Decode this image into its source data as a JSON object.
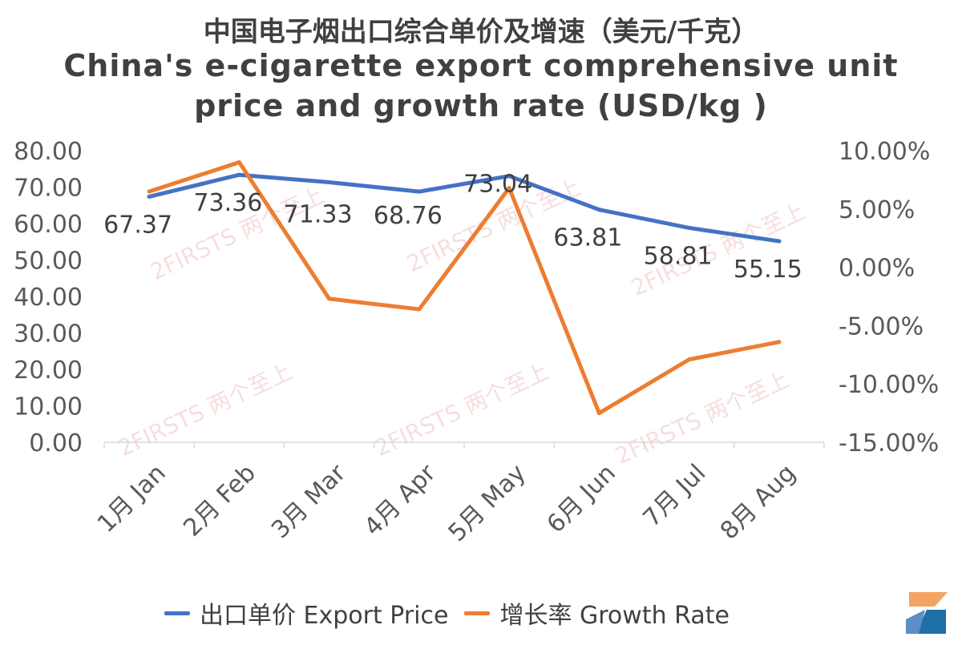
{
  "title": {
    "zh": "中国电子烟出口综合单价及增速（美元/千克）",
    "en_line1": "China's e-cigarette export comprehensive unit",
    "en_line2": "price and growth rate (USD/kg )"
  },
  "legend": [
    {
      "label": "出口单价 Export Price",
      "color": "#4472C4"
    },
    {
      "label": "增长率 Growth Rate",
      "color": "#ED7D31"
    }
  ],
  "watermark": "2FIRSTS 两个至上",
  "chart_data": {
    "type": "line",
    "categories": [
      "1月 Jan",
      "2月 Feb",
      "3月 Mar",
      "4月 Apr",
      "5月 May",
      "6月 Jun",
      "7月 Jul",
      "8月 Aug"
    ],
    "series": [
      {
        "name": "出口单价 Export Price",
        "axis": "left",
        "color": "#4472C4",
        "values": [
          67.37,
          73.36,
          71.33,
          68.76,
          73.04,
          63.81,
          58.81,
          55.15
        ],
        "labels": [
          "67.37",
          "73.36",
          "71.33",
          "68.76",
          "73.04",
          "63.81",
          "58.81",
          "55.15"
        ]
      },
      {
        "name": "增长率 Growth Rate",
        "axis": "right",
        "color": "#ED7D31",
        "values": [
          6.5,
          9.0,
          -2.7,
          -3.6,
          6.8,
          -12.5,
          -7.9,
          -6.4
        ]
      }
    ],
    "left_axis": {
      "min": 0,
      "max": 80,
      "step": 10,
      "ticks": [
        "0.00",
        "10.00",
        "20.00",
        "30.00",
        "40.00",
        "50.00",
        "60.00",
        "70.00",
        "80.00"
      ]
    },
    "right_axis": {
      "min": -15,
      "max": 10,
      "step": 5,
      "ticks": [
        "-15.00%",
        "-10.00%",
        "-5.00%",
        "0.00%",
        "5.00%",
        "10.00%"
      ]
    },
    "grid": false
  }
}
